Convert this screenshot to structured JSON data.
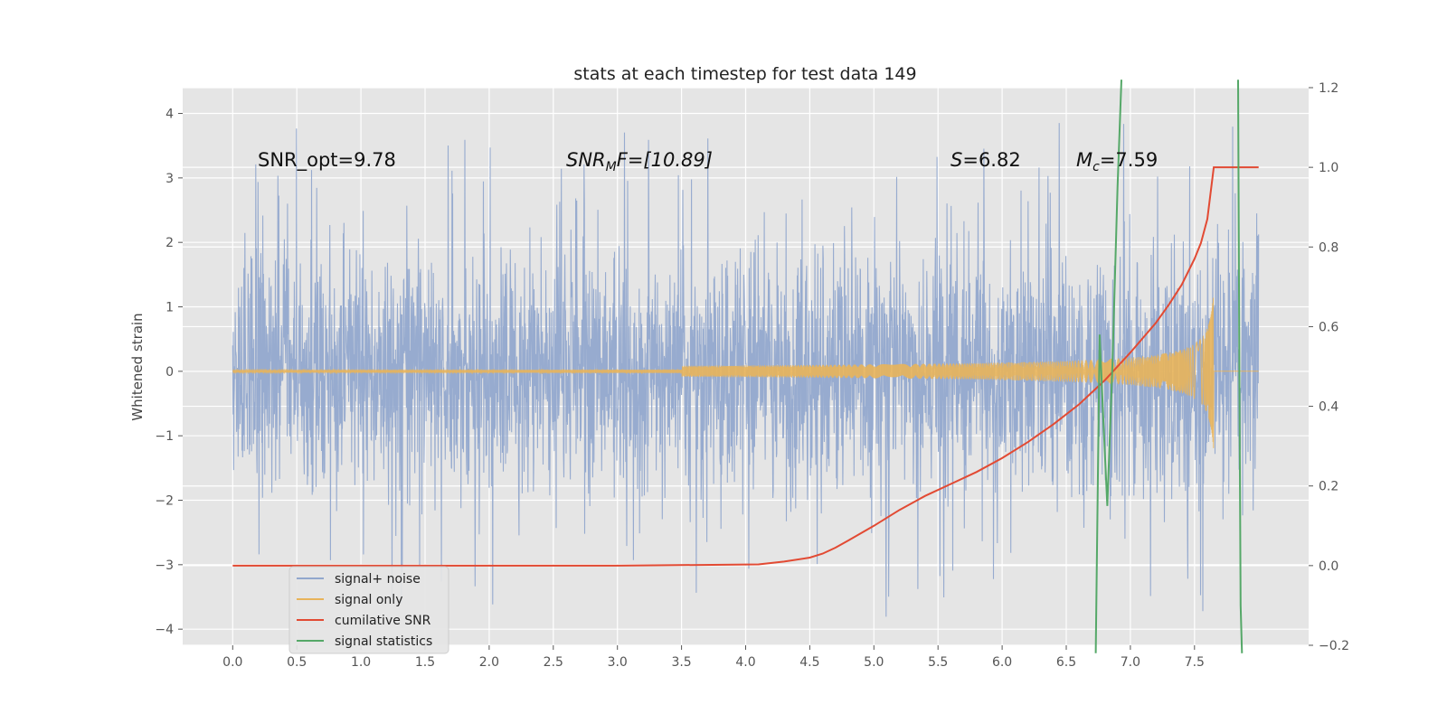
{
  "chart_data": {
    "type": "line",
    "title": "stats at each timestep for test data 149",
    "ylabel": "Whitened strain",
    "xlabel": "",
    "xlim": [
      -0.39,
      8.39
    ],
    "ylim": [
      -4.25,
      4.4
    ],
    "y2lim": [
      -0.2,
      1.2
    ],
    "xticks": [
      "0.0",
      "0.5",
      "1.0",
      "1.5",
      "2.0",
      "2.5",
      "3.0",
      "3.5",
      "4.0",
      "4.5",
      "5.0",
      "5.5",
      "6.0",
      "6.5",
      "7.0",
      "7.5"
    ],
    "yticks": [
      "−4",
      "−3",
      "−2",
      "−1",
      "0",
      "1",
      "2",
      "3",
      "4"
    ],
    "y2ticks": [
      "−0.2",
      "0.0",
      "0.2",
      "0.4",
      "0.6",
      "0.8",
      "1.0",
      "1.2"
    ],
    "annotations": [
      {
        "text": "SNR_opt=9.78",
        "x": 0.2,
        "y": 3.2
      },
      {
        "text_main": "SNR",
        "text_sub": "M",
        "text_rest": "F=[10.89]",
        "x": 2.6,
        "y": 3.2
      },
      {
        "text_main": "S",
        "text_rest": "=6.82",
        "x": 5.6,
        "y": 3.2
      },
      {
        "text_main": "M",
        "text_sub": "c",
        "text_rest": "=7.59",
        "x": 6.6,
        "y": 3.2
      }
    ],
    "series": [
      {
        "name": "signal+ noise",
        "color": "#92a8cd",
        "x_range": [
          0.0,
          8.0
        ],
        "note": "gaussian noise, typical amplitude ~ ±2, extremes to ±4"
      },
      {
        "name": "signal only",
        "color": "#e8b45a",
        "chirp_merger_time": 7.65,
        "peak_amplitude": 1.25
      },
      {
        "name": "cumilative SNR",
        "color": "#e24a33",
        "x": [
          0.0,
          1.0,
          2.0,
          3.0,
          4.1,
          4.3,
          4.5,
          4.6,
          4.7,
          4.8,
          5.0,
          5.2,
          5.4,
          5.6,
          5.8,
          6.0,
          6.2,
          6.4,
          6.6,
          6.8,
          7.0,
          7.2,
          7.3,
          7.4,
          7.5,
          7.55,
          7.6,
          7.65,
          7.85,
          8.0
        ],
        "y": [
          0.0,
          0.0,
          0.0,
          0.0,
          0.003,
          0.01,
          0.02,
          0.03,
          0.045,
          0.063,
          0.1,
          0.14,
          0.175,
          0.205,
          0.235,
          0.27,
          0.31,
          0.355,
          0.405,
          0.465,
          0.535,
          0.61,
          0.655,
          0.705,
          0.77,
          0.81,
          0.87,
          1.0,
          1.0,
          1.0
        ]
      },
      {
        "name": "signal statistics",
        "color": "#55a868",
        "x": [
          6.73,
          6.76,
          6.79,
          6.82,
          6.86,
          6.9,
          6.93,
          7.84,
          7.85,
          7.86,
          7.87
        ],
        "y": [
          -0.22,
          0.58,
          0.36,
          0.15,
          0.5,
          0.95,
          1.25,
          1.25,
          0.5,
          -0.1,
          -0.25
        ]
      }
    ],
    "legend": {
      "position": "lower-left",
      "entries": [
        "signal+ noise",
        "signal only",
        "cumilative SNR",
        "signal statistics"
      ]
    }
  }
}
